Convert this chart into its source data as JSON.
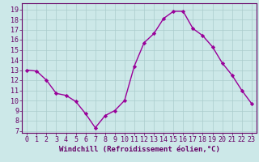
{
  "x": [
    0,
    1,
    2,
    3,
    4,
    5,
    6,
    7,
    8,
    9,
    10,
    11,
    12,
    13,
    14,
    15,
    16,
    17,
    18,
    19,
    20,
    21,
    22,
    23
  ],
  "y": [
    13,
    12.9,
    12,
    10.7,
    10.5,
    9.9,
    8.7,
    7.3,
    8.5,
    9.0,
    10.0,
    13.4,
    15.7,
    16.6,
    18.1,
    18.8,
    18.8,
    17.1,
    16.4,
    15.3,
    13.7,
    12.5,
    11.0,
    9.7
  ],
  "line_color": "#990099",
  "marker": "D",
  "marker_size": 2.2,
  "line_width": 1.0,
  "bg_color": "#cce8e8",
  "grid_color": "#aacccc",
  "tick_color": "#660066",
  "label_color": "#660066",
  "xlabel": "Windchill (Refroidissement éolien,°C)",
  "xlabel_fontsize": 6.5,
  "xtick_labels": [
    "0",
    "1",
    "2",
    "3",
    "4",
    "5",
    "6",
    "7",
    "8",
    "9",
    "10",
    "11",
    "12",
    "13",
    "14",
    "15",
    "16",
    "17",
    "18",
    "19",
    "20",
    "21",
    "22",
    "23"
  ],
  "ytick_labels": [
    "7",
    "8",
    "9",
    "10",
    "11",
    "12",
    "13",
    "14",
    "15",
    "16",
    "17",
    "18",
    "19"
  ],
  "ylim": [
    6.8,
    19.6
  ],
  "xlim": [
    -0.5,
    23.5
  ],
  "tick_fontsize": 6.0
}
